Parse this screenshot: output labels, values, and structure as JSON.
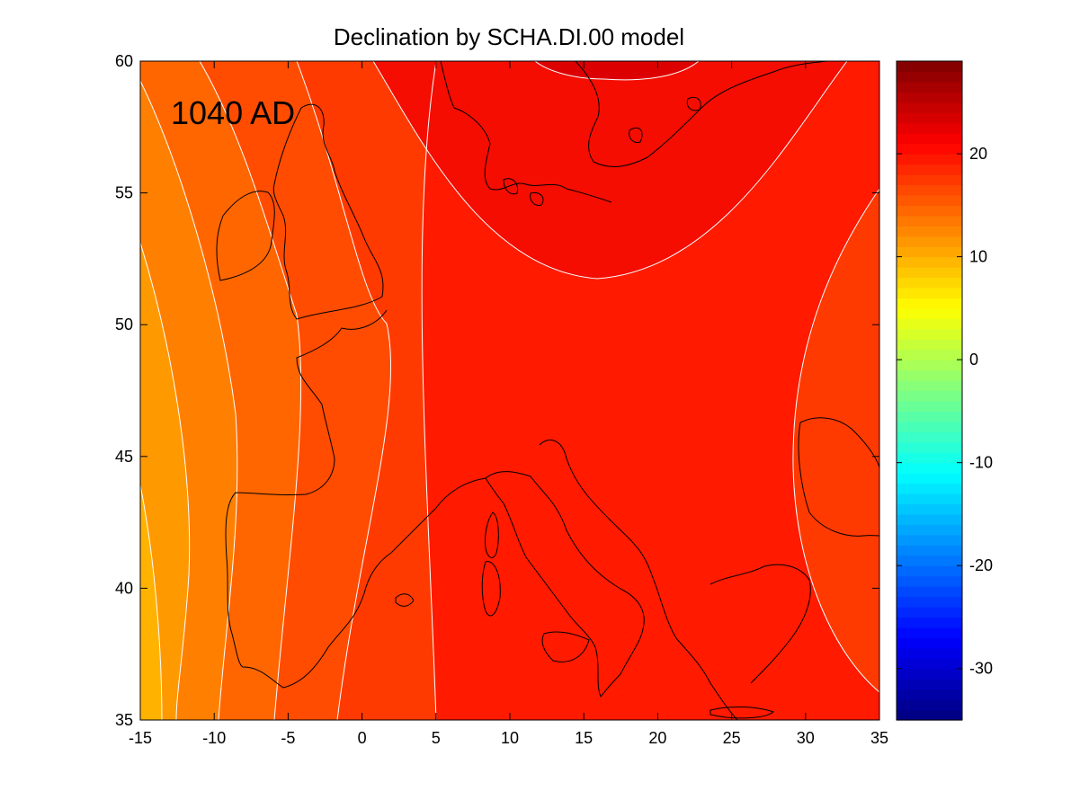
{
  "title": "Declination by SCHA.DI.00 model",
  "epoch_label": "1040 AD",
  "x_axis": {
    "ticks": [
      -15,
      -10,
      -5,
      0,
      5,
      10,
      15,
      20,
      25,
      30,
      35
    ],
    "tick_labels": [
      "-15",
      "-10",
      "-5",
      "0",
      "5",
      "10",
      "15",
      "20",
      "25",
      "30",
      "35"
    ],
    "range": [
      -15,
      35
    ]
  },
  "y_axis": {
    "ticks": [
      35,
      40,
      45,
      50,
      55,
      60
    ],
    "tick_labels": [
      "35",
      "40",
      "45",
      "50",
      "55",
      "60"
    ],
    "range": [
      35,
      60
    ]
  },
  "colorbar": {
    "range": [
      -35,
      29
    ],
    "ticks": [
      -30,
      -20,
      -10,
      0,
      10,
      20
    ],
    "tick_labels": [
      "-30",
      "-20",
      "-10",
      "0",
      "10",
      "20"
    ],
    "colormap": "jet"
  },
  "chart_data": {
    "type": "heatmap",
    "title": "Declination by SCHA.DI.00 model",
    "xlim": [
      -15,
      35
    ],
    "ylim": [
      35,
      60
    ],
    "clim": [
      -35,
      29
    ],
    "contour_levels": [
      8,
      10,
      12,
      14,
      16,
      18,
      20
    ],
    "field_description_values": {
      "southwest_corner": 9,
      "central_europe": 18,
      "scandinavia_max": 20,
      "turkey_region": 16
    }
  },
  "colors": {
    "contour_line": "#ffffff",
    "coast_line": "#000000"
  }
}
